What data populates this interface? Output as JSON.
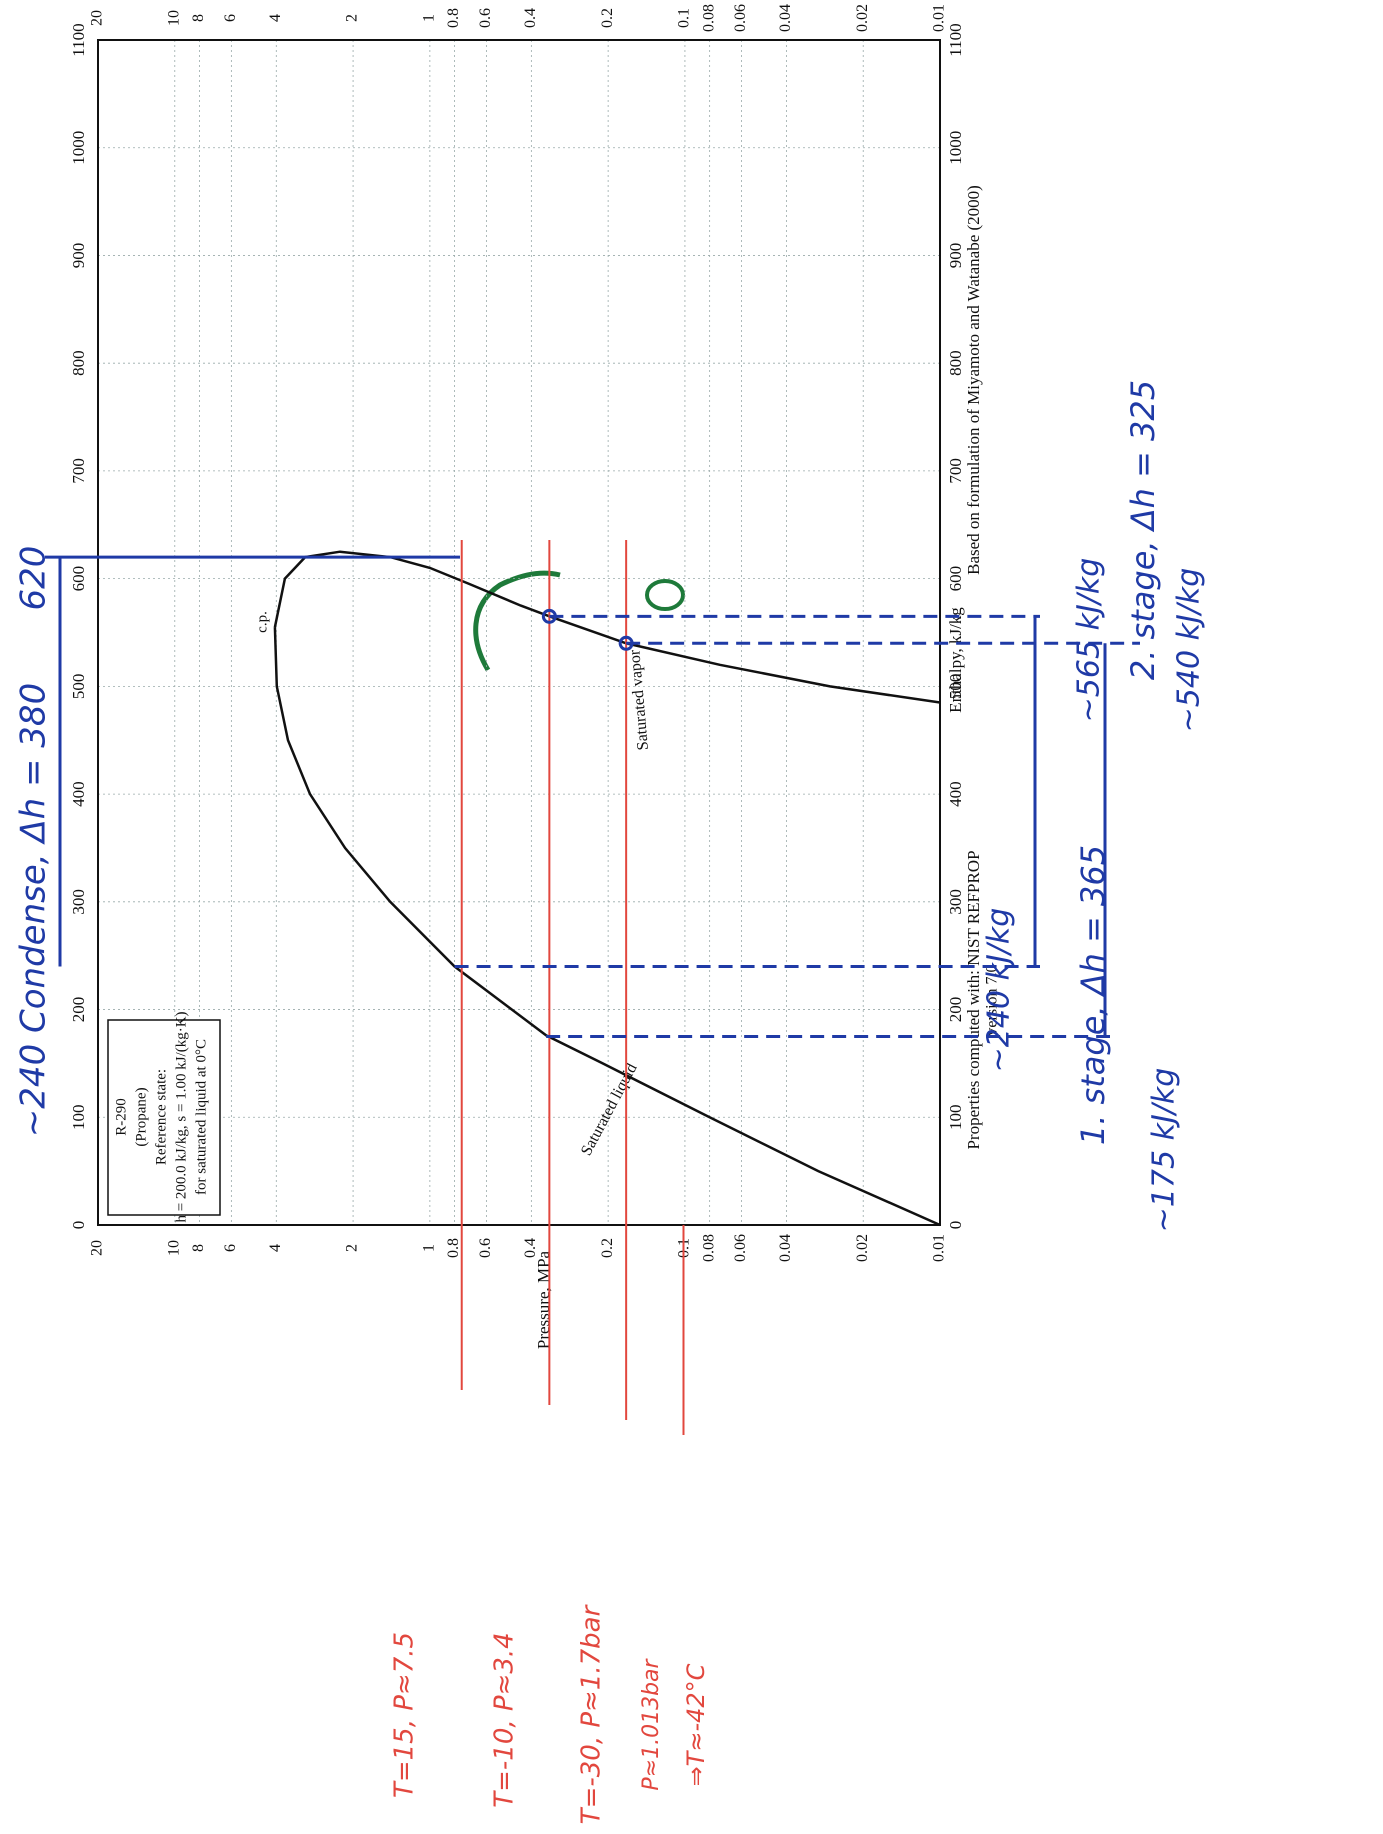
{
  "chart_data": {
    "type": "line",
    "x_label": "Enthalpy, kJ/kg",
    "y_label": "Pressure, MPa",
    "xlim": [
      0,
      1100
    ],
    "xticks": [
      0,
      100,
      200,
      300,
      400,
      500,
      600,
      700,
      800,
      900,
      1000,
      1100
    ],
    "ylim": [
      0.01,
      20
    ],
    "yticks": [
      20,
      10,
      8,
      6,
      4,
      2,
      1,
      0.8,
      0.6,
      0.4,
      0.2,
      0.1,
      0.08,
      0.06,
      0.04,
      0.02,
      0.01
    ],
    "log_y": true,
    "grid": true,
    "series": [
      {
        "name": "Saturated liquid",
        "color": "#111111",
        "x": [
          0,
          50,
          100,
          150,
          176,
          240,
          300,
          350,
          400,
          450,
          500,
          555
        ],
        "values": [
          0.01,
          0.03,
          0.08,
          0.21,
          0.35,
          0.8,
          1.43,
          2.15,
          2.95,
          3.6,
          3.98,
          4.05
        ]
      },
      {
        "name": "Saturated vapor",
        "color": "#111111",
        "x": [
          555,
          600,
          620,
          625,
          620,
          610,
          595,
          575,
          565,
          540,
          520,
          500,
          485
        ],
        "values": [
          4.05,
          3.7,
          3.08,
          2.25,
          1.43,
          1.0,
          0.7,
          0.44,
          0.34,
          0.17,
          0.073,
          0.027,
          0.01
        ]
      }
    ],
    "critical_point_label": "c.p.",
    "info_box": [
      "R-290",
      "(Propane)",
      "Reference state:",
      "h = 200.0 kJ/kg, s = 1.00 kJ/(kg·K)",
      "for saturated liquid at 0°C"
    ],
    "footnote_left": [
      "Properties computed with: NIST REFPROP",
      "version 7.0"
    ],
    "footnote_right": "Based on formulation of Miyamoto and Watanabe (2000)",
    "marked_enthalpies": [
      175,
      240,
      540,
      565,
      620
    ],
    "marked_enthalpy_color": "#1f3aa6",
    "marked_pressures": [
      0.75,
      0.34,
      0.17,
      0.1013
    ],
    "marked_pressure_color": "#e2473e",
    "annotations": [
      "~240 Condense, Δh = 380",
      "620",
      "~565 kJ/kg",
      "2. stage, Δh = 325",
      "~540 kJ/kg",
      "~240 kJ/kg",
      "1. stage, Δh = 365",
      "~175 kJ/kg",
      "T=15, P≈7.5",
      "T=-10, P≈3.4",
      "T=-30, P≈1.7bar",
      "P≈1.013bar",
      "⇒T≈-42°C"
    ]
  }
}
